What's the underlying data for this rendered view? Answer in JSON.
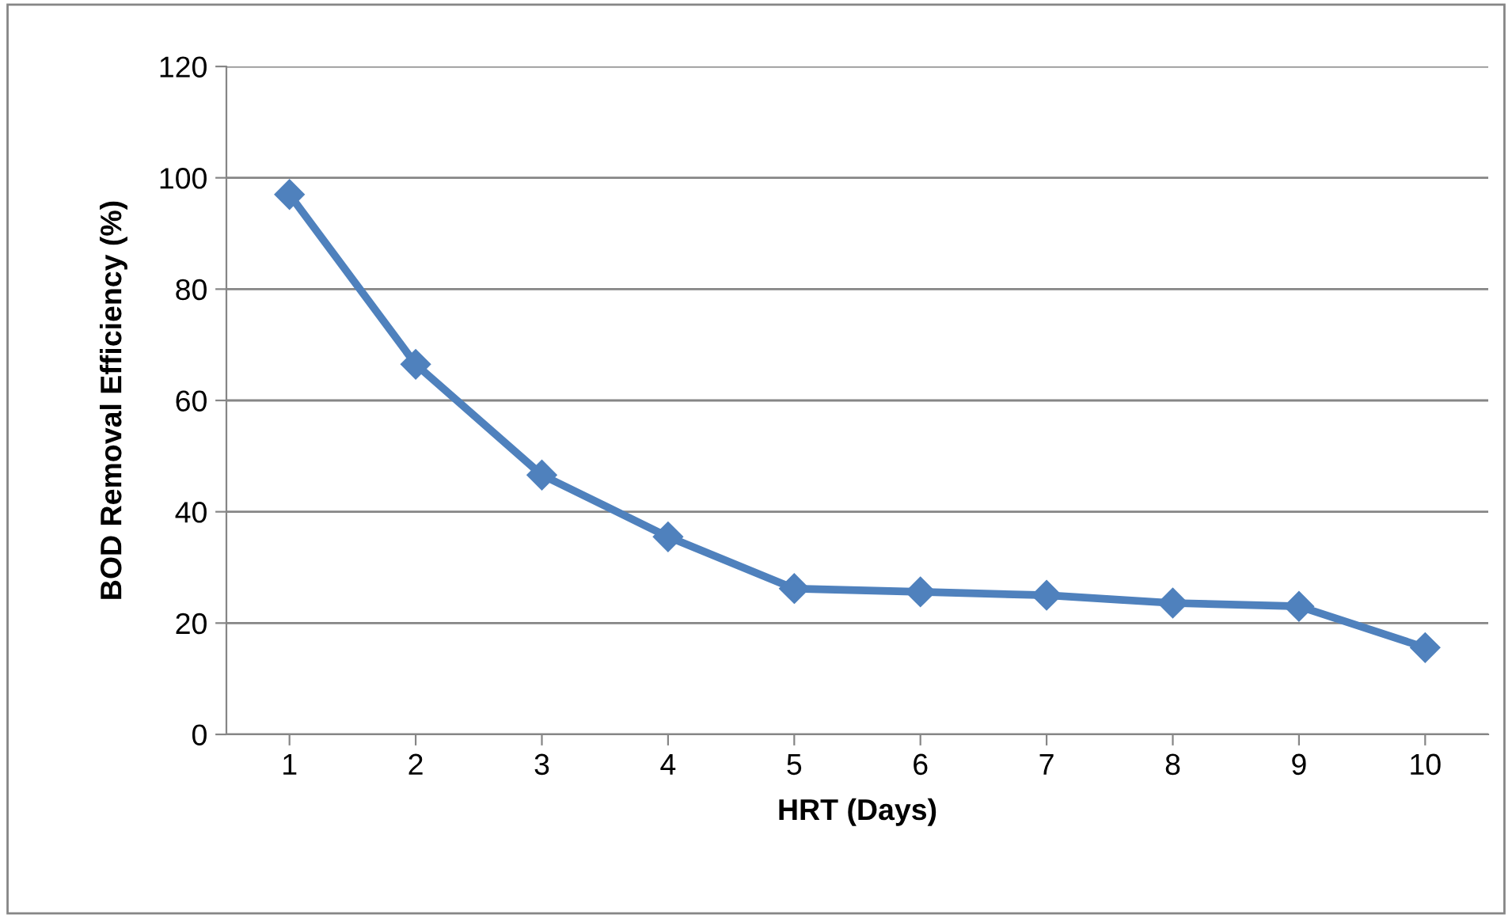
{
  "chart_data": {
    "type": "line",
    "xlabel": "HRT (Days)",
    "ylabel": "BOD Removal Efficiency (%)",
    "categories": [
      "1",
      "2",
      "3",
      "4",
      "5",
      "6",
      "7",
      "8",
      "9",
      "10"
    ],
    "series": [
      {
        "color": "#4f81bd",
        "values": [
          97,
          66.5,
          46.6,
          35.5,
          26.2,
          25.6,
          25,
          23.6,
          23,
          15.6
        ]
      }
    ],
    "ylim": [
      0,
      120
    ],
    "yticks": [
      0,
      20,
      40,
      60,
      80,
      100,
      120
    ],
    "grid": "y",
    "legend": false,
    "marker": "diamond",
    "line_style": "solid"
  }
}
